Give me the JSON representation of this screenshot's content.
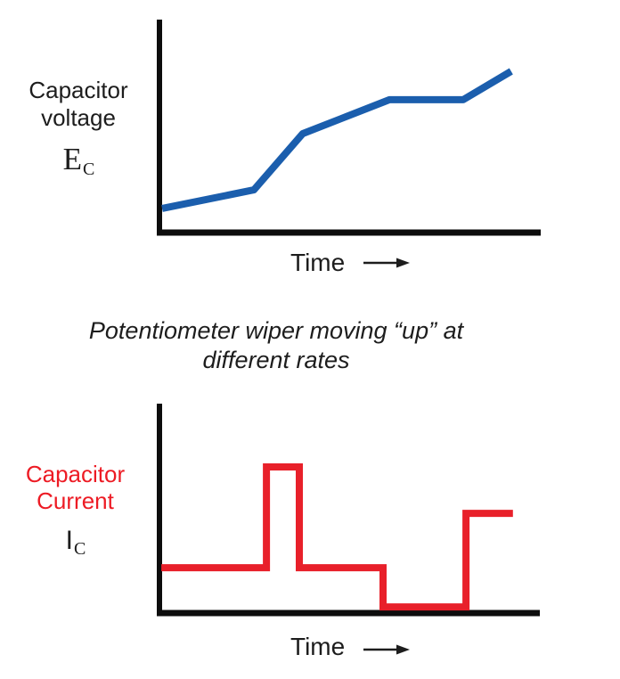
{
  "page": {
    "background": "#ffffff"
  },
  "colors": {
    "text": "#1d1d1d",
    "axis": "#0d0d0d",
    "voltage_line": "#1b5ead",
    "current_line": "#e8202a",
    "current_label": "#ed1b24"
  },
  "caption": {
    "line1": "Potentiometer wiper moving “up” at",
    "line2": "different rates"
  },
  "chart_data": [
    {
      "id": "capacitor-voltage",
      "type": "line",
      "title": "Capacitor voltage vs time",
      "ylabel_line1": "Capacitor",
      "ylabel_line2": "voltage",
      "symbol": "E",
      "symbol_subscript": "C",
      "xlabel": "Time",
      "color": "#1b5ead",
      "grid": false,
      "legend": null,
      "xlim": [
        0,
        10
      ],
      "ylim": [
        0,
        9.4
      ],
      "x": [
        0.14,
        2.53,
        3.8,
        6.06,
        7.98,
        9.23
      ],
      "y": [
        0.96,
        1.79,
        4.3,
        5.82,
        5.82,
        7.09
      ],
      "annotation": "voltage rises at varying rates: shallow ramp, steep ramp, moderate ramp, flat plateau, rise again"
    },
    {
      "id": "capacitor-current",
      "type": "line",
      "line_shape": "step",
      "title": "Capacitor current vs time",
      "ylabel_line1": "Capacitor",
      "ylabel_line2": "Current",
      "symbol": "I",
      "symbol_subscript": "C",
      "xlabel": "Time",
      "color": "#e8202a",
      "grid": false,
      "legend": null,
      "xlim": [
        0,
        10
      ],
      "ylim": [
        0,
        9.4
      ],
      "x": [
        0.12,
        2.87,
        2.87,
        3.73,
        3.73,
        5.92,
        5.92,
        8.09,
        8.09,
        9.32
      ],
      "y": [
        1.91,
        1.91,
        6.51,
        6.51,
        1.91,
        1.91,
        0.12,
        0.12,
        4.39,
        4.39
      ],
      "annotation": "current steps: medium level, tall narrow pulse, medium level, near-zero level, medium-high level"
    }
  ]
}
